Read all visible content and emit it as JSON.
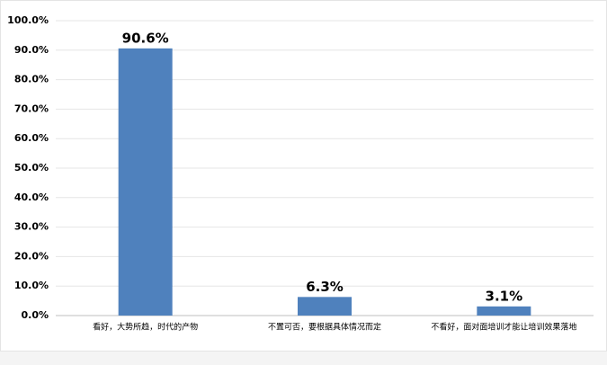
{
  "chart_data": {
    "type": "bar",
    "categories": [
      "看好，大势所趋，时代的产物",
      "不置可否，要根据具体情况而定",
      "不看好，面对面培训才能让培训效果落地"
    ],
    "values": [
      90.6,
      6.3,
      3.1
    ],
    "value_labels": [
      "90.6%",
      "6.3%",
      "3.1%"
    ],
    "color": "#4f81bd",
    "ylim": [
      0,
      100
    ],
    "yticks": [
      {
        "value": 0,
        "label": "0.0%"
      },
      {
        "value": 10,
        "label": "10.0%"
      },
      {
        "value": 20,
        "label": "20.0%"
      },
      {
        "value": 30,
        "label": "30.0%"
      },
      {
        "value": 40,
        "label": "40.0%"
      },
      {
        "value": 50,
        "label": "50.0%"
      },
      {
        "value": 60,
        "label": "60.0%"
      },
      {
        "value": 70,
        "label": "70.0%"
      },
      {
        "value": 80,
        "label": "80.0%"
      },
      {
        "value": 90,
        "label": "90.0%"
      },
      {
        "value": 100,
        "label": "100.0%"
      }
    ],
    "grid": true
  }
}
